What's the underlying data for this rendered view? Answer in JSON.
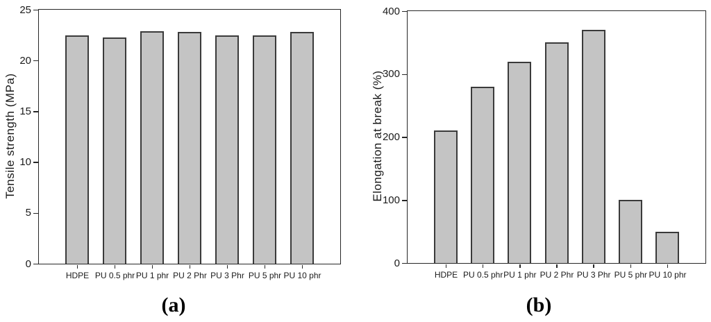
{
  "page": {
    "background": "#ffffff",
    "text_color": "#1a1a1a"
  },
  "chart_data": [
    {
      "id": "a",
      "type": "bar",
      "title": "",
      "xlabel": "",
      "ylabel": "Tensile strength (MPa)",
      "categories": [
        "HDPE",
        "PU 0.5 phr",
        "PU 1 phr",
        "PU 2 Phr",
        "PU 3 Phr",
        "PU 5 phr",
        "PU 10 phr"
      ],
      "values": [
        22.5,
        22.3,
        22.9,
        22.8,
        22.5,
        22.5,
        22.8
      ],
      "ylim": [
        0,
        25
      ],
      "yticks": [
        0,
        5,
        10,
        15,
        20,
        25
      ],
      "grid": false,
      "legend": "none",
      "bar_fill": "#c4c4c4",
      "bar_border": "#3a3a3a",
      "axis_color": "#262626",
      "caption": "(a)"
    },
    {
      "id": "b",
      "type": "bar",
      "title": "",
      "xlabel": "",
      "ylabel": "Elongation at break (%)",
      "categories": [
        "HDPE",
        "PU 0.5 phr",
        "PU 1 phr",
        "PU 2 Phr",
        "PU 3 Phr",
        "PU 5 phr",
        "PU 10 phr"
      ],
      "values": [
        210,
        280,
        320,
        350,
        370,
        100,
        50
      ],
      "ylim": [
        0,
        400
      ],
      "yticks": [
        0,
        100,
        200,
        300,
        400
      ],
      "grid": false,
      "legend": "none",
      "bar_fill": "#c4c4c4",
      "bar_border": "#3a3a3a",
      "axis_color": "#262626",
      "caption": "(b)"
    }
  ]
}
